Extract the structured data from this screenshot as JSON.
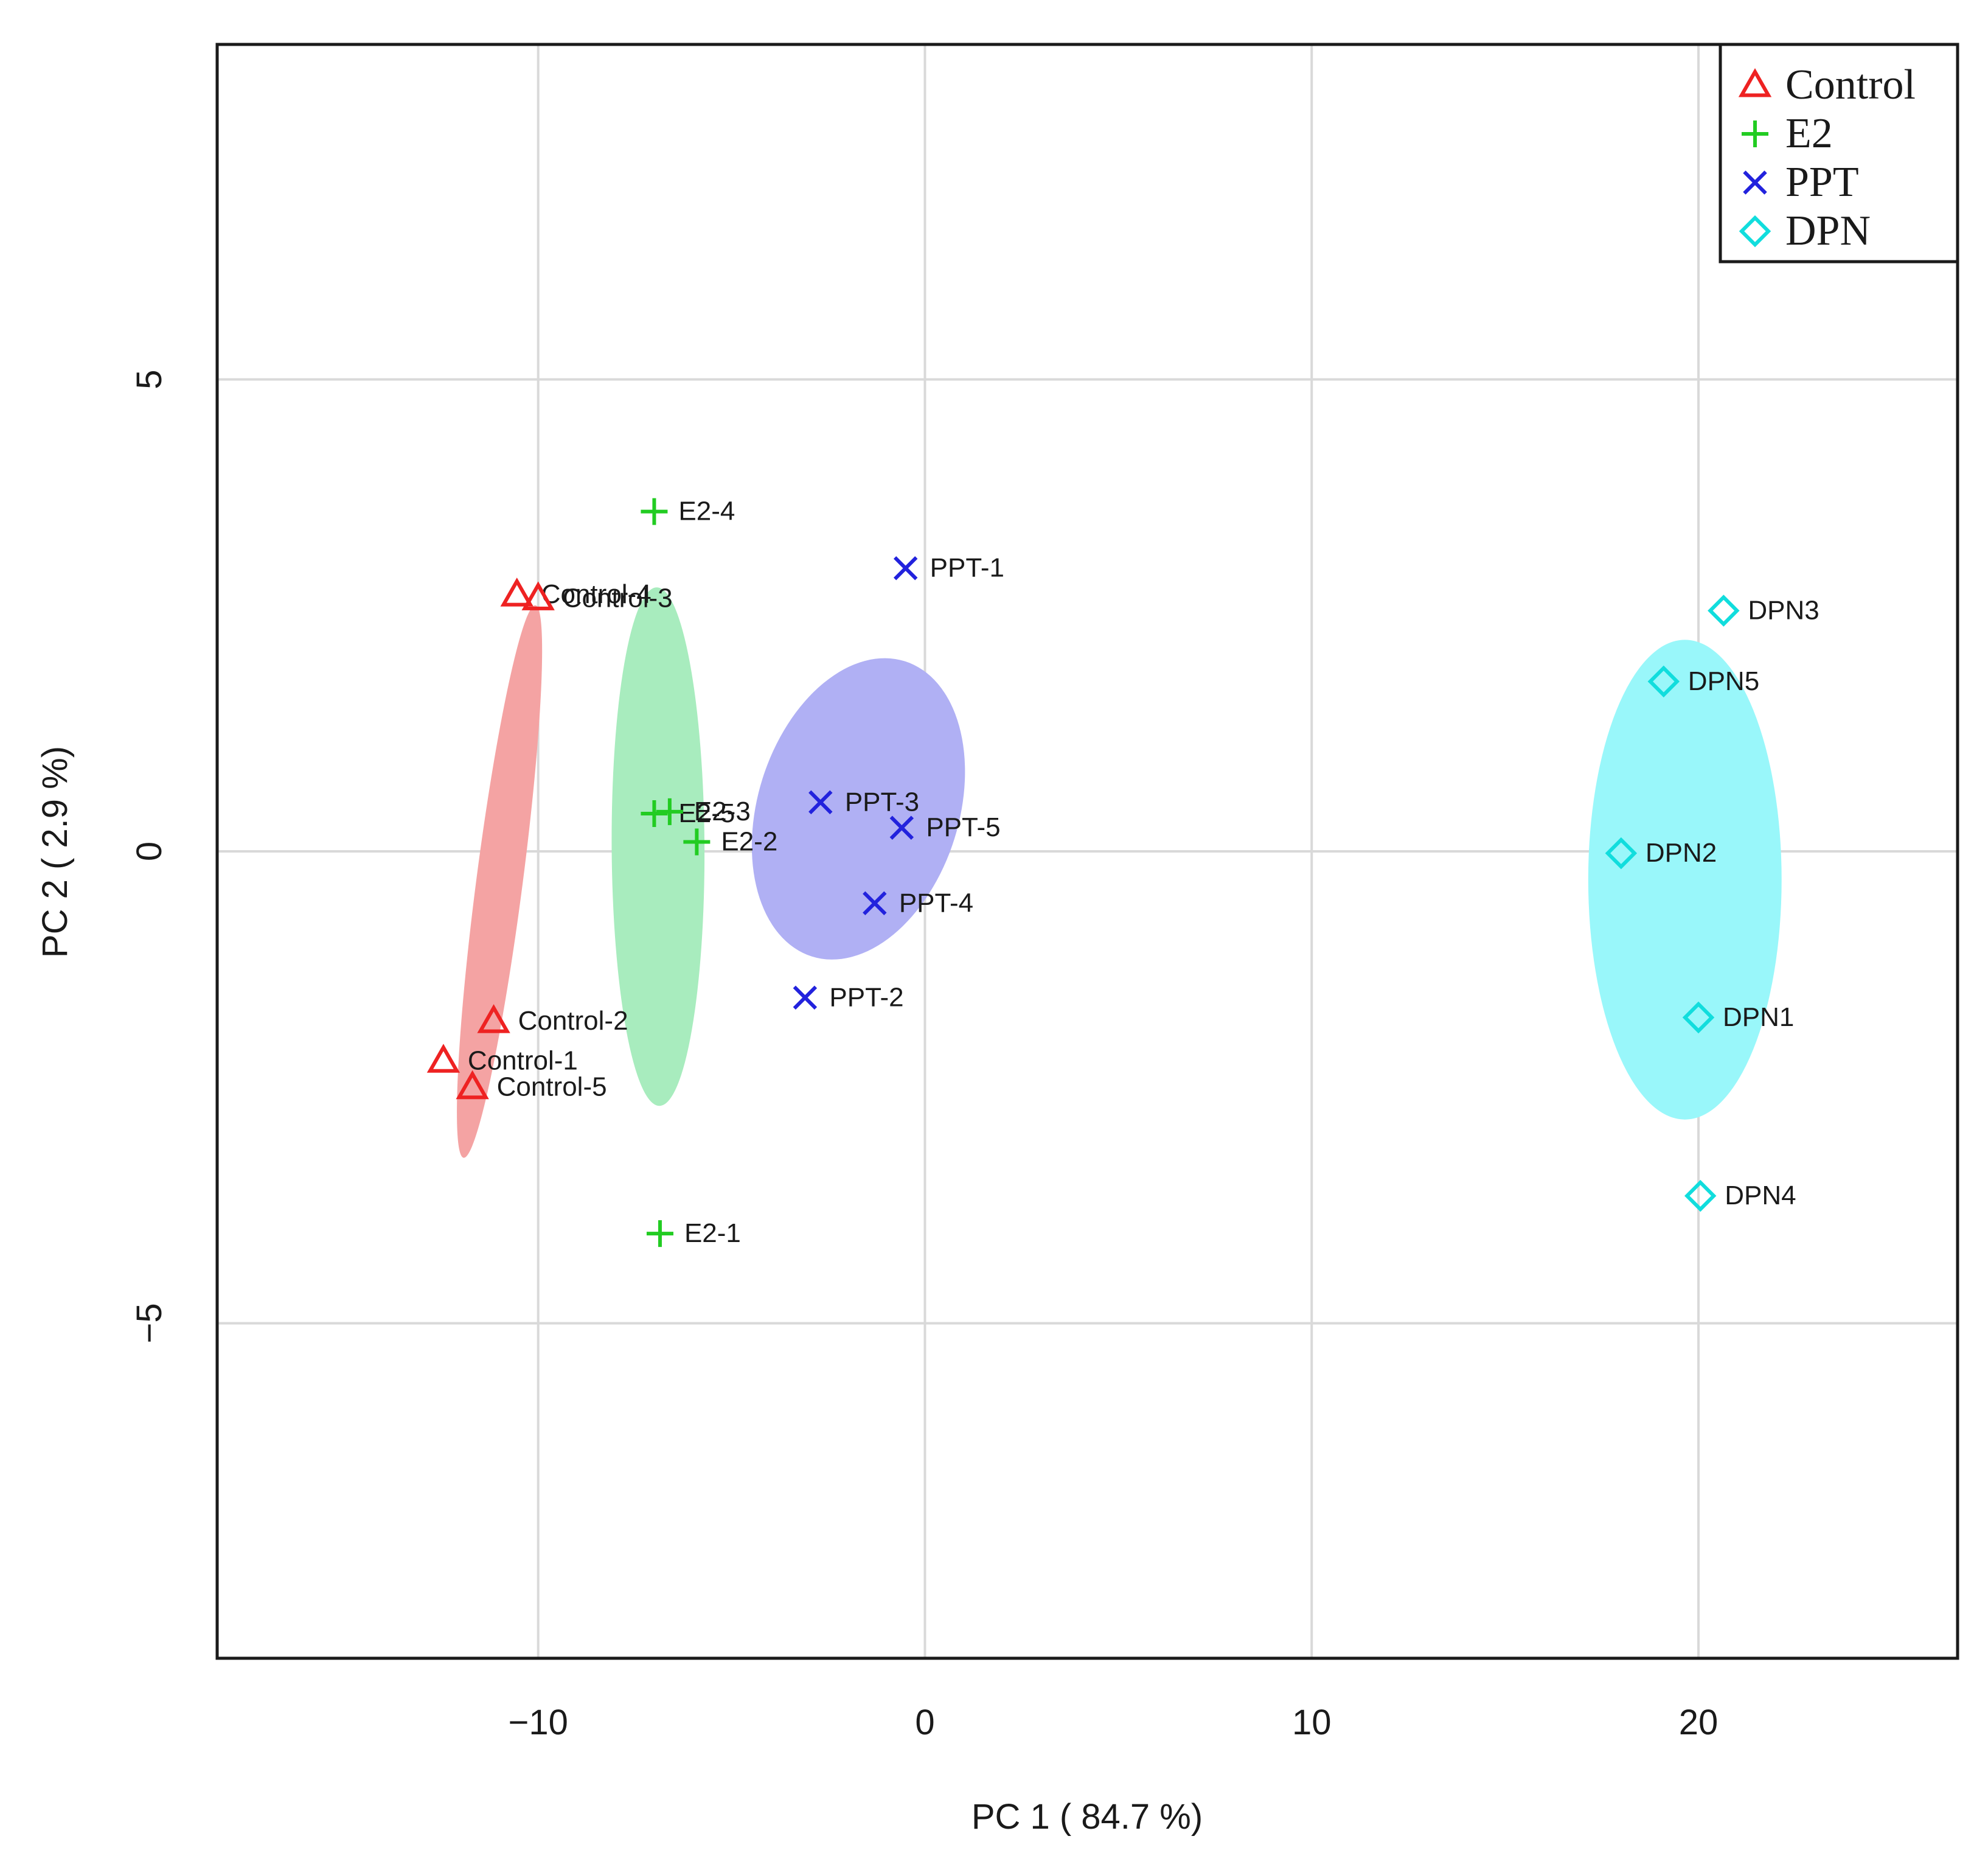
{
  "chart_data": {
    "type": "scatter",
    "xlabel": "PC 1 ( 84.7 %)",
    "ylabel": "PC 2 ( 2.9 %)",
    "xlim": [
      -18.3,
      26.7
    ],
    "ylim": [
      -8.55,
      8.55
    ],
    "xticks": [
      {
        "value": -10,
        "label": "−10"
      },
      {
        "value": 0,
        "label": "0"
      },
      {
        "value": 10,
        "label": "10"
      },
      {
        "value": 20,
        "label": "20"
      }
    ],
    "yticks": [
      {
        "value": -5,
        "label": "−5"
      },
      {
        "value": 0,
        "label": "0"
      },
      {
        "value": 5,
        "label": "5"
      }
    ],
    "grid": true,
    "legend_position": "top-right",
    "series": [
      {
        "name": "Control",
        "marker": "triangle",
        "color": "#ee2222",
        "fill": "#f4a3a3",
        "ellipse": {
          "cx": -11.0,
          "cy": -0.32,
          "rx": 7.2,
          "ry": 0.6,
          "angle_deg": 82.6
        },
        "points": [
          {
            "label": "Control-4",
            "x": -10.55,
            "y": 2.72
          },
          {
            "label": "Control-3",
            "x": -10.0,
            "y": 2.68
          },
          {
            "label": "Control-2",
            "x": -11.15,
            "y": -1.8
          },
          {
            "label": "Control-1",
            "x": -12.45,
            "y": -2.22
          },
          {
            "label": "Control-5",
            "x": -11.7,
            "y": -2.5
          }
        ]
      },
      {
        "name": "E2",
        "marker": "plus",
        "color": "#22cc22",
        "fill": "#a8ecbe",
        "ellipse": {
          "cx": -6.9,
          "cy": 0.05,
          "rx": 6.7,
          "ry": 1.2,
          "angle_deg": 90.3
        },
        "points": [
          {
            "label": "E2-4",
            "x": -7.0,
            "y": 3.6
          },
          {
            "label": "E2-5",
            "x": -7.0,
            "y": 0.4
          },
          {
            "label": "E2-3",
            "x": -6.6,
            "y": 0.42
          },
          {
            "label": "E2-2",
            "x": -5.9,
            "y": 0.1
          },
          {
            "label": "E2-1",
            "x": -6.85,
            "y": -4.05
          }
        ]
      },
      {
        "name": "PPT",
        "marker": "cross",
        "color": "#2222dd",
        "fill": "#b0b0f4",
        "ellipse": {
          "cx": -1.72,
          "cy": 0.45,
          "rx": 4.0,
          "ry": 2.6,
          "angle_deg": 72.5
        },
        "points": [
          {
            "label": "PPT-1",
            "x": -0.5,
            "y": 3.0
          },
          {
            "label": "PPT-3",
            "x": -2.7,
            "y": 0.52
          },
          {
            "label": "PPT-5",
            "x": -0.6,
            "y": 0.25
          },
          {
            "label": "PPT-4",
            "x": -1.3,
            "y": -0.55
          },
          {
            "label": "PPT-2",
            "x": -3.1,
            "y": -1.55
          }
        ]
      },
      {
        "name": "DPN",
        "marker": "diamond",
        "color": "#11dddd",
        "fill": "#99f7fa",
        "ellipse": {
          "cx": 19.65,
          "cy": -0.3,
          "rx": 6.2,
          "ry": 2.5,
          "angle_deg": 90
        },
        "points": [
          {
            "label": "DPN3",
            "x": 20.65,
            "y": 2.55
          },
          {
            "label": "DPN5",
            "x": 19.1,
            "y": 1.8
          },
          {
            "label": "DPN2",
            "x": 18.0,
            "y": -0.02
          },
          {
            "label": "DPN1",
            "x": 20.0,
            "y": -1.76
          },
          {
            "label": "DPN4",
            "x": 20.05,
            "y": -3.65
          }
        ]
      }
    ]
  }
}
